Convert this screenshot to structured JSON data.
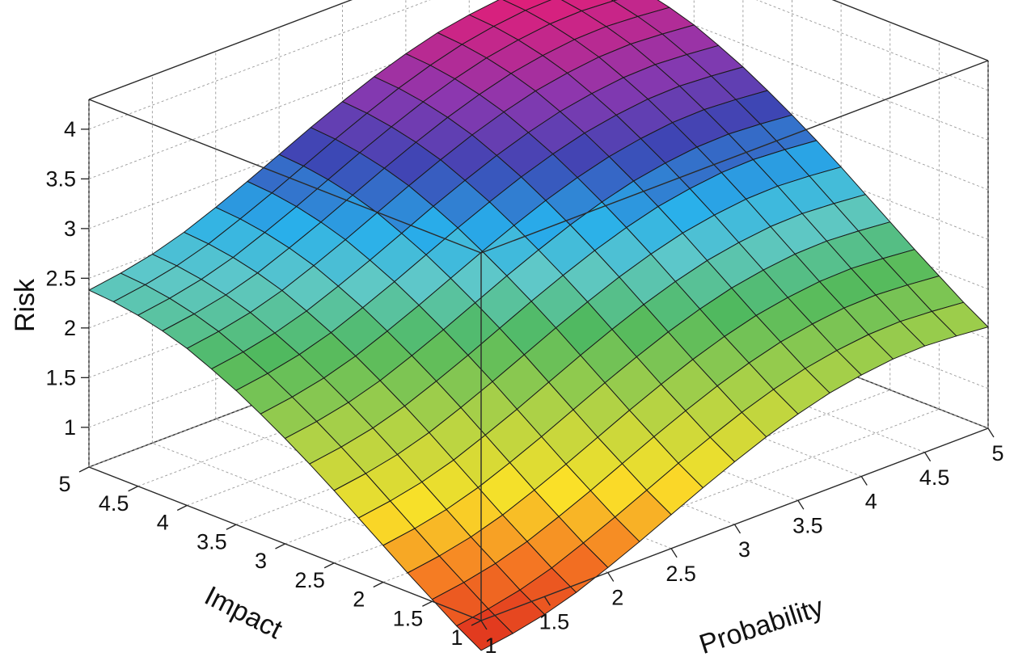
{
  "chart_data": {
    "type": "surface3d",
    "title": "",
    "xlabel": "Probability",
    "ylabel": "Impact",
    "zlabel": "Risk",
    "xlim": [
      1,
      5
    ],
    "ylim": [
      1,
      5
    ],
    "zlim": [
      0.6,
      4.3
    ],
    "grid": true,
    "colormap": "reverse-rainbow (red low → yellow → green → cyan → blue → magenta high)",
    "x_ticks": [
      "1",
      "1.5",
      "2",
      "2.5",
      "3",
      "3.5",
      "4",
      "4.5",
      "5"
    ],
    "y_ticks": [
      "1",
      "1.5",
      "2",
      "2.5",
      "3",
      "3.5",
      "4",
      "4.5",
      "5"
    ],
    "z_ticks": [
      "1",
      "1.5",
      "2",
      "2.5",
      "3",
      "3.5",
      "4"
    ],
    "x": [
      1,
      1.25,
      1.5,
      1.75,
      2,
      2.25,
      2.5,
      2.75,
      3,
      3.25,
      3.5,
      3.75,
      4,
      4.25,
      4.5,
      4.75,
      5
    ],
    "y": [
      1,
      1.25,
      1.5,
      1.75,
      2,
      2.25,
      2.5,
      2.75,
      3,
      3.25,
      3.5,
      3.75,
      4,
      4.25,
      4.5,
      4.75,
      5
    ],
    "z_note": "rows indexed by Impact (y), columns by Probability (x)",
    "z": [
      [
        0.3,
        0.35,
        0.42,
        0.52,
        0.65,
        0.79,
        0.94,
        1.09,
        1.23,
        1.36,
        1.47,
        1.56,
        1.62,
        1.66,
        1.67,
        1.65,
        1.62
      ],
      [
        0.45,
        0.5,
        0.57,
        0.67,
        0.8,
        0.94,
        1.09,
        1.24,
        1.38,
        1.51,
        1.62,
        1.71,
        1.77,
        1.81,
        1.82,
        1.8,
        1.77
      ],
      [
        0.62,
        0.67,
        0.74,
        0.84,
        0.97,
        1.11,
        1.26,
        1.41,
        1.55,
        1.68,
        1.79,
        1.88,
        1.94,
        1.98,
        1.99,
        1.97,
        1.94
      ],
      [
        0.79,
        0.84,
        0.91,
        1.01,
        1.14,
        1.28,
        1.43,
        1.58,
        1.72,
        1.85,
        1.96,
        2.05,
        2.11,
        2.15,
        2.16,
        2.14,
        2.11
      ],
      [
        0.97,
        1.02,
        1.09,
        1.19,
        1.32,
        1.46,
        1.61,
        1.76,
        1.9,
        2.03,
        2.14,
        2.23,
        2.29,
        2.33,
        2.34,
        2.32,
        2.29
      ],
      [
        1.15,
        1.2,
        1.27,
        1.37,
        1.5,
        1.64,
        1.79,
        1.94,
        2.08,
        2.21,
        2.32,
        2.41,
        2.47,
        2.51,
        2.52,
        2.5,
        2.47
      ],
      [
        1.33,
        1.38,
        1.45,
        1.55,
        1.68,
        1.82,
        1.97,
        2.12,
        2.26,
        2.39,
        2.5,
        2.59,
        2.65,
        2.69,
        2.7,
        2.68,
        2.65
      ],
      [
        1.5,
        1.55,
        1.62,
        1.72,
        1.85,
        1.99,
        2.14,
        2.29,
        2.43,
        2.56,
        2.67,
        2.76,
        2.82,
        2.86,
        2.87,
        2.85,
        2.82
      ],
      [
        1.66,
        1.71,
        1.78,
        1.88,
        2.01,
        2.15,
        2.3,
        2.45,
        2.59,
        2.72,
        2.83,
        2.92,
        2.98,
        3.02,
        3.03,
        3.01,
        2.98
      ],
      [
        1.81,
        1.86,
        1.93,
        2.03,
        2.16,
        2.3,
        2.45,
        2.6,
        2.74,
        2.87,
        2.98,
        3.07,
        3.13,
        3.17,
        3.18,
        3.16,
        3.13
      ],
      [
        1.95,
        2.0,
        2.07,
        2.17,
        2.3,
        2.44,
        2.59,
        2.74,
        2.88,
        3.01,
        3.12,
        3.21,
        3.27,
        3.31,
        3.32,
        3.3,
        3.27
      ],
      [
        2.07,
        2.12,
        2.19,
        2.29,
        2.42,
        2.56,
        2.71,
        2.86,
        3.0,
        3.13,
        3.24,
        3.33,
        3.39,
        3.43,
        3.44,
        3.42,
        3.39
      ],
      [
        2.18,
        2.23,
        2.3,
        2.4,
        2.53,
        2.67,
        2.82,
        2.97,
        3.11,
        3.24,
        3.35,
        3.44,
        3.5,
        3.54,
        3.55,
        3.53,
        3.5
      ],
      [
        2.26,
        2.31,
        2.38,
        2.48,
        2.61,
        2.75,
        2.9,
        3.05,
        3.19,
        3.32,
        3.43,
        3.52,
        3.58,
        3.62,
        3.63,
        3.61,
        3.58
      ],
      [
        2.32,
        2.37,
        2.44,
        2.54,
        2.67,
        2.81,
        2.96,
        3.11,
        3.25,
        3.38,
        3.49,
        3.58,
        3.64,
        3.68,
        3.69,
        3.67,
        3.64
      ],
      [
        2.36,
        2.41,
        2.48,
        2.58,
        2.71,
        2.85,
        3.0,
        3.15,
        3.29,
        3.42,
        3.53,
        3.62,
        3.68,
        3.72,
        3.73,
        3.71,
        3.68
      ],
      [
        2.38,
        2.43,
        2.5,
        2.6,
        2.73,
        2.87,
        3.02,
        3.17,
        3.31,
        3.44,
        3.55,
        3.64,
        3.7,
        3.74,
        3.75,
        3.73,
        3.7
      ]
    ]
  }
}
